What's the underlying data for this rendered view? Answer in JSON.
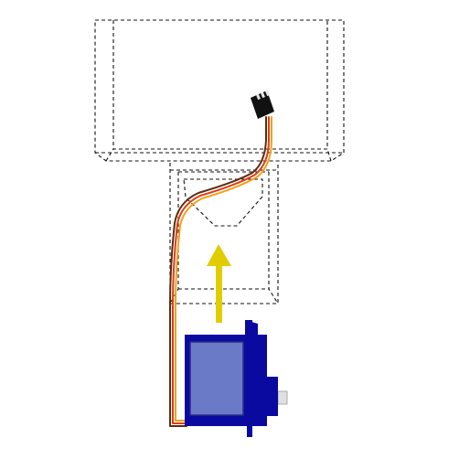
{
  "diagram": {
    "background": "#ffffff",
    "colors": {
      "outline": "#111111",
      "arrow": "#e1cc00",
      "servo_body": "#0a0aa0",
      "servo_window": "#6a7ac6",
      "servo_window_border": "#2a2a8a",
      "wire_brown": "#5a2d0c",
      "wire_red": "#e23b16",
      "wire_orange": "#f2a21a",
      "connector": "#111111",
      "connector_pin": "#e6e6e6",
      "servo_shaft": "#e0e0e0"
    },
    "parts": [
      {
        "id": "top-frame",
        "description_icon": "dashed-box-icon"
      },
      {
        "id": "mount-bracket",
        "description_icon": "dashed-bracket-icon"
      },
      {
        "id": "servo-motor",
        "description_icon": "servo-icon"
      },
      {
        "id": "servo-cable",
        "description_icon": "cable-icon"
      },
      {
        "id": "connector",
        "description_icon": "connector-icon"
      },
      {
        "id": "insert-arrow",
        "description_icon": "up-arrow-icon"
      }
    ]
  }
}
